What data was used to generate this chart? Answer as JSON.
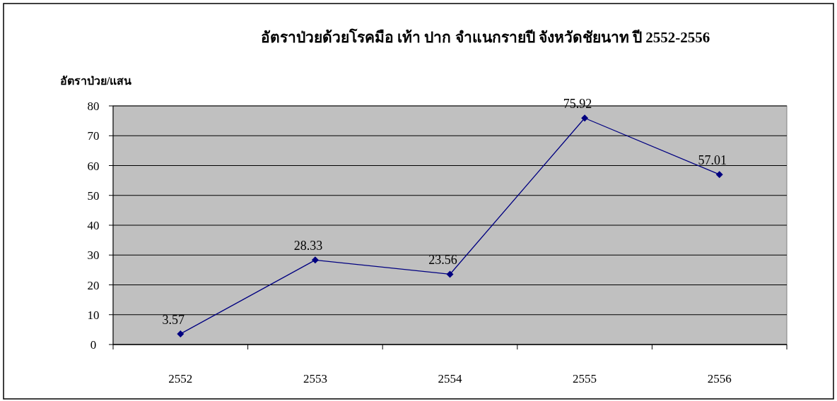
{
  "chart_data": {
    "type": "line",
    "title": "อัตราป่วยด้วยโรคมือ เท้า ปาก จำแนกรายปี จังหวัดชัยนาท ปี 2552-2556",
    "ylabel": "อัตราป่วย/แสน",
    "categories": [
      "2552",
      "2553",
      "2554",
      "2555",
      "2556"
    ],
    "series": [
      {
        "color": "#000080",
        "values": [
          3.57,
          28.33,
          23.56,
          75.92,
          57.01
        ]
      }
    ],
    "ylim": [
      0,
      80
    ],
    "yticks": [
      0,
      10,
      20,
      30,
      40,
      50,
      60,
      70,
      80
    ],
    "grid": "y",
    "marker": "diamond",
    "line_style": "solid",
    "data_labels": true
  }
}
